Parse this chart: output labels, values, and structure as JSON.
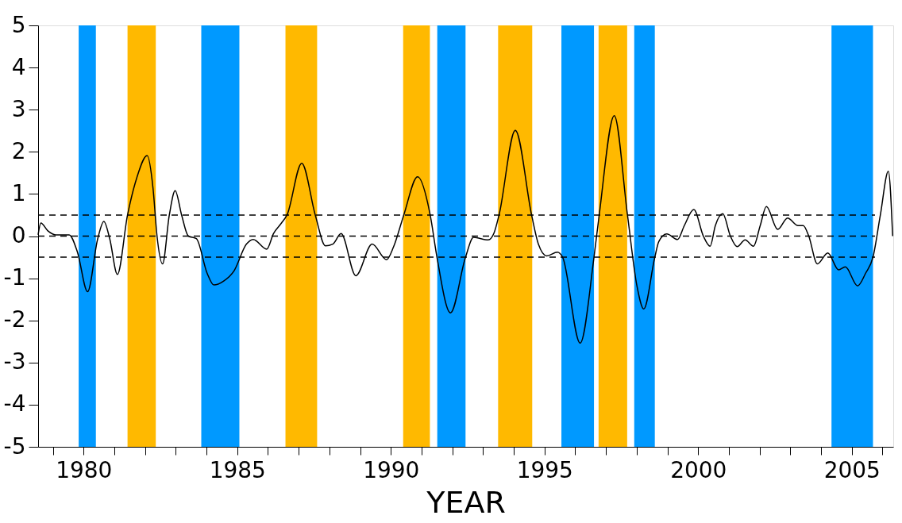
{
  "chart_data": {
    "type": "line",
    "xlabel": "YEAR",
    "x": [
      1978.52,
      1978.61,
      1978.83,
      1979.09,
      1979.53,
      1979.8,
      1980.13,
      1980.46,
      1980.66,
      1980.85,
      1981.1,
      1981.43,
      1981.73,
      1982.07,
      1982.26,
      1982.39,
      1982.57,
      1982.79,
      1982.98,
      1983.19,
      1983.41,
      1983.67,
      1984.02,
      1984.24,
      1984.55,
      1984.9,
      1985.3,
      1985.52,
      1985.96,
      1986.18,
      1986.44,
      1986.62,
      1987.1,
      1987.54,
      1987.87,
      1988.11,
      1988.38,
      1988.86,
      1989.39,
      1989.86,
      1990.09,
      1990.42,
      1990.87,
      1991.28,
      1991.5,
      1991.94,
      1992.43,
      1992.69,
      1993.17,
      1993.35,
      1993.52,
      1994.05,
      1994.58,
      1994.8,
      1995.07,
      1995.42,
      1995.59,
      1996.16,
      1996.61,
      1996.78,
      1997.27,
      1997.7,
      1998.01,
      1998.23,
      1998.59,
      1998.72,
      1998.98,
      1999.33,
      1999.55,
      1999.86,
      2000.17,
      2000.39,
      2000.56,
      2000.8,
      2001.05,
      2001.27,
      2001.53,
      2001.8,
      2002.02,
      2002.22,
      2002.59,
      2002.91,
      2003.25,
      2003.42,
      2003.6,
      2003.88,
      2004.22,
      2004.57,
      2004.79,
      2005.19,
      2005.45,
      2005.69,
      2005.93,
      2006.19,
      2006.33
    ],
    "series": [
      {
        "color": "#000000",
        "values": [
          0.03,
          0.31,
          0.13,
          0.03,
          0.03,
          -0.38,
          -1.32,
          -0.06,
          0.35,
          -0.06,
          -0.91,
          0.5,
          1.38,
          1.91,
          1.13,
          0,
          -0.66,
          0.5,
          1.08,
          0.5,
          0,
          -0.06,
          -0.88,
          -1.16,
          -1.07,
          -0.82,
          -0.19,
          -0.08,
          -0.31,
          0.06,
          0.31,
          0.5,
          1.73,
          0.5,
          -0.23,
          -0.19,
          0.06,
          -0.94,
          -0.19,
          -0.56,
          -0.25,
          0.5,
          1.41,
          0.5,
          -0.5,
          -1.82,
          -0.5,
          -0.03,
          -0.09,
          0.06,
          0.5,
          2.51,
          0.5,
          -0.19,
          -0.47,
          -0.38,
          -0.5,
          -2.54,
          -0.5,
          0.5,
          2.86,
          0.5,
          -1.19,
          -1.73,
          -0.5,
          -0.13,
          0.05,
          -0.08,
          0.25,
          0.63,
          0,
          -0.24,
          0.25,
          0.53,
          0,
          -0.25,
          -0.09,
          -0.24,
          0.25,
          0.7,
          0.16,
          0.43,
          0.25,
          0.25,
          0,
          -0.66,
          -0.4,
          -0.8,
          -0.73,
          -1.18,
          -0.88,
          -0.5,
          0.5,
          1.54,
          0
        ]
      }
    ],
    "xlim": [
      1978.52,
      2006.35
    ],
    "xticks": [
      {
        "value": 1979,
        "label": null
      },
      1980,
      {
        "value": 1981,
        "label": null
      },
      {
        "value": 1982,
        "label": null
      },
      {
        "value": 1983,
        "label": null
      },
      {
        "value": 1984,
        "label": null
      },
      1985,
      {
        "value": 1986,
        "label": null
      },
      {
        "value": 1987,
        "label": null
      },
      {
        "value": 1988,
        "label": null
      },
      {
        "value": 1989,
        "label": null
      },
      1990,
      {
        "value": 1991,
        "label": null
      },
      {
        "value": 1992,
        "label": null
      },
      {
        "value": 1993,
        "label": null
      },
      {
        "value": 1994,
        "label": null
      },
      1995,
      {
        "value": 1996,
        "label": null
      },
      {
        "value": 1997,
        "label": null
      },
      {
        "value": 1998,
        "label": null
      },
      {
        "value": 1999,
        "label": null
      },
      2000,
      {
        "value": 2001,
        "label": null
      },
      {
        "value": 2002,
        "label": null
      },
      {
        "value": 2003,
        "label": null
      },
      {
        "value": 2004,
        "label": null
      },
      2005,
      {
        "value": 2006,
        "label": null
      }
    ],
    "ylim": [
      -5,
      5
    ],
    "yticks": [
      -5,
      -4,
      -3,
      -2,
      -1,
      0,
      1,
      2,
      3,
      4,
      5
    ],
    "grid": false,
    "marker": "none",
    "line_style": "solid",
    "ref_lines": [
      {
        "axis": "y",
        "value": 0.5,
        "line_style": "dashed"
      },
      {
        "axis": "y",
        "value": -0.5,
        "line_style": "dashed"
      },
      {
        "axis": "y",
        "value": 0,
        "line_style": "dashed"
      }
    ],
    "bands": [
      {
        "axis": "x",
        "from": 1979.84,
        "to": 1980.4,
        "color": "#0099ff"
      },
      {
        "axis": "x",
        "from": 1981.43,
        "to": 1982.35,
        "color": "#ffb900"
      },
      {
        "axis": "x",
        "from": 1983.83,
        "to": 1985.07,
        "color": "#0099ff"
      },
      {
        "axis": "x",
        "from": 1986.57,
        "to": 1987.6,
        "color": "#ffb900"
      },
      {
        "axis": "x",
        "from": 1990.4,
        "to": 1991.27,
        "color": "#ffb900"
      },
      {
        "axis": "x",
        "from": 1991.51,
        "to": 1992.43,
        "color": "#0099ff"
      },
      {
        "axis": "x",
        "from": 1993.49,
        "to": 1994.6,
        "color": "#ffb900"
      },
      {
        "axis": "x",
        "from": 1995.55,
        "to": 1996.61,
        "color": "#0099ff"
      },
      {
        "axis": "x",
        "from": 1996.76,
        "to": 1997.69,
        "color": "#ffb900"
      },
      {
        "axis": "x",
        "from": 1997.92,
        "to": 1998.59,
        "color": "#0099ff"
      },
      {
        "axis": "x",
        "from": 2004.34,
        "to": 2005.69,
        "color": "#0099ff"
      }
    ]
  }
}
